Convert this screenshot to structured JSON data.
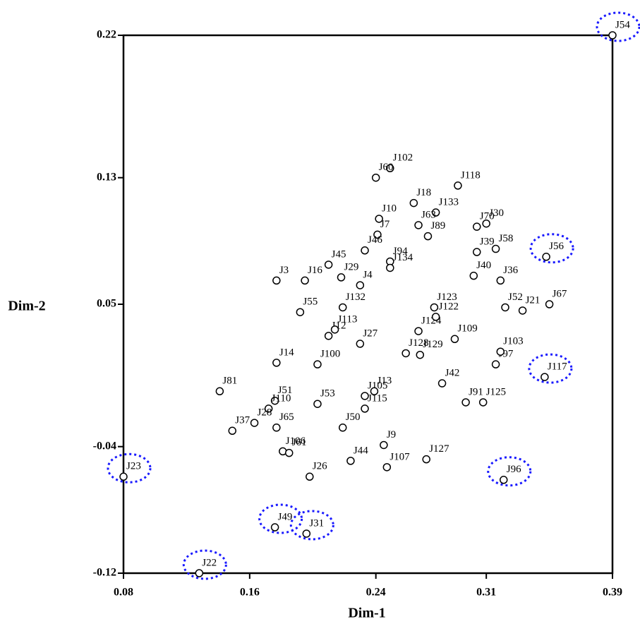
{
  "chart_data": {
    "type": "scatter",
    "x_label": "Dim-1",
    "y_label": "Dim-2",
    "xlim": [
      0.08,
      0.39
    ],
    "ylim": [
      -0.12,
      0.22
    ],
    "xticks": [
      0.08,
      0.16,
      0.24,
      0.31,
      0.39
    ],
    "yticks": [
      0.22,
      0.13,
      0.05,
      -0.04,
      -0.12
    ],
    "color": "#000000",
    "circle_color": "#1a1aff",
    "point_labels": [
      "J54",
      "J23",
      "J22",
      "J49",
      "J31",
      "J96",
      "J117",
      "J56",
      "J102",
      "J60",
      "J118",
      "J18",
      "J133",
      "J30",
      "J70",
      "J10",
      "J89",
      "J7",
      "J46",
      "J63",
      "J58",
      "J45",
      "J29",
      "J3",
      "J16",
      "J55",
      "J132",
      "J4",
      "J52",
      "J21",
      "J67",
      "J36",
      "J14",
      "J100",
      "J27",
      "J97",
      "J103",
      "J42",
      "J91",
      "J125",
      "J81",
      "J51",
      "J110",
      "J53",
      "J105",
      "J13",
      "J115",
      "J50",
      "J37",
      "J28",
      "J65",
      "J106",
      "J61",
      "J44",
      "J9",
      "J107",
      "J127",
      "J26",
      "J12",
      "J113",
      "J124",
      "J129",
      "J128",
      "J109",
      "J123",
      "J122",
      "J94",
      "J134",
      "J39",
      "J40"
    ],
    "x": [
      0.39,
      0.08,
      0.128,
      0.176,
      0.196,
      0.321,
      0.347,
      0.348,
      0.249,
      0.24,
      0.292,
      0.264,
      0.278,
      0.31,
      0.304,
      0.242,
      0.273,
      0.241,
      0.233,
      0.267,
      0.316,
      0.21,
      0.218,
      0.177,
      0.195,
      0.192,
      0.219,
      0.23,
      0.322,
      0.333,
      0.35,
      0.319,
      0.177,
      0.203,
      0.23,
      0.316,
      0.319,
      0.282,
      0.297,
      0.308,
      0.141,
      0.176,
      0.172,
      0.203,
      0.233,
      0.239,
      0.233,
      0.219,
      0.149,
      0.163,
      0.177,
      0.181,
      0.185,
      0.224,
      0.245,
      0.247,
      0.272,
      0.198,
      0.21,
      0.214,
      0.267,
      0.268,
      0.259,
      0.29,
      0.277,
      0.278,
      0.249,
      0.249,
      0.304,
      0.302
    ],
    "values": [
      0.22,
      -0.059,
      -0.12,
      -0.091,
      -0.095,
      -0.061,
      0.004,
      0.08,
      0.136,
      0.13,
      0.125,
      0.114,
      0.108,
      0.101,
      0.099,
      0.104,
      0.093,
      0.094,
      0.084,
      0.1,
      0.085,
      0.075,
      0.067,
      0.065,
      0.065,
      0.045,
      0.048,
      0.062,
      0.048,
      0.046,
      0.05,
      0.065,
      0.013,
      0.012,
      0.025,
      0.012,
      0.02,
      0,
      -0.012,
      -0.012,
      -0.005,
      -0.011,
      -0.016,
      -0.013,
      -0.008,
      -0.005,
      -0.016,
      -0.028,
      -0.03,
      -0.025,
      -0.028,
      -0.043,
      -0.044,
      -0.049,
      -0.039,
      -0.053,
      -0.048,
      -0.059,
      0.03,
      0.034,
      0.033,
      0.018,
      0.019,
      0.028,
      0.048,
      0.042,
      0.077,
      0.073,
      0.083,
      0.068
    ],
    "circled": [
      true,
      true,
      true,
      true,
      true,
      true,
      true,
      true,
      false,
      false,
      false,
      false,
      false,
      false,
      false,
      false,
      false,
      false,
      false,
      false,
      false,
      false,
      false,
      false,
      false,
      false,
      false,
      false,
      false,
      false,
      false,
      false,
      false,
      false,
      false,
      false,
      false,
      false,
      false,
      false,
      false,
      false,
      false,
      false,
      false,
      false,
      false,
      false,
      false,
      false,
      false,
      false,
      false,
      false,
      false,
      false,
      false,
      false,
      false,
      false,
      false,
      false,
      false,
      false,
      false,
      false,
      false,
      false,
      false,
      false
    ]
  }
}
